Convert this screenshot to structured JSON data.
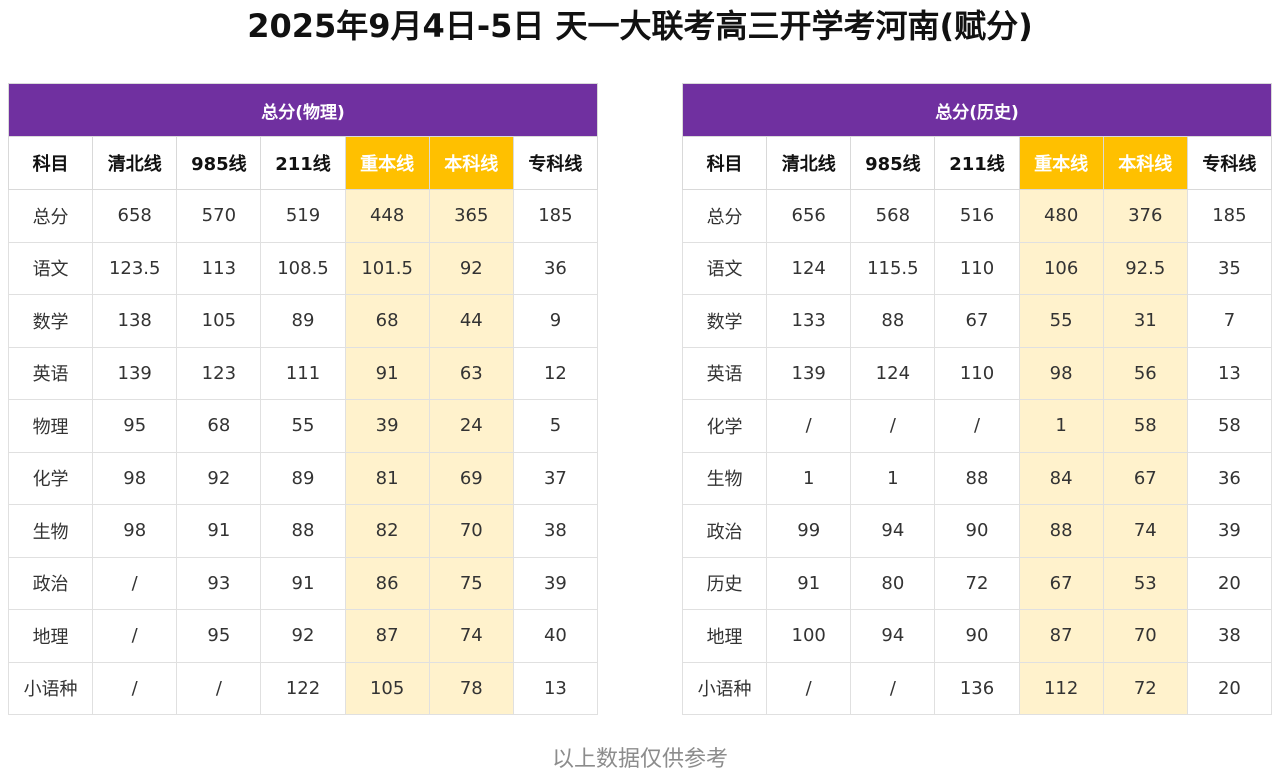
{
  "title": "2025年9月4日-5日  天一大联考高三开学考河南(赋分)",
  "columns": [
    "科目",
    "清北线",
    "985线",
    "211线",
    "重本线",
    "本科线",
    "专科线"
  ],
  "colors": {
    "header_purple": "#7030a0",
    "highlight_header": "#ffc000",
    "highlight_cell": "#fff2cc"
  },
  "highlight_columns": [
    "重本线",
    "本科线"
  ],
  "physics_table": {
    "header": "总分(物理)",
    "rows": [
      [
        "总分",
        "658",
        "570",
        "519",
        "448",
        "365",
        "185"
      ],
      [
        "语文",
        "123.5",
        "113",
        "108.5",
        "101.5",
        "92",
        "36"
      ],
      [
        "数学",
        "138",
        "105",
        "89",
        "68",
        "44",
        "9"
      ],
      [
        "英语",
        "139",
        "123",
        "111",
        "91",
        "63",
        "12"
      ],
      [
        "物理",
        "95",
        "68",
        "55",
        "39",
        "24",
        "5"
      ],
      [
        "化学",
        "98",
        "92",
        "89",
        "81",
        "69",
        "37"
      ],
      [
        "生物",
        "98",
        "91",
        "88",
        "82",
        "70",
        "38"
      ],
      [
        "政治",
        "/",
        "93",
        "91",
        "86",
        "75",
        "39"
      ],
      [
        "地理",
        "/",
        "95",
        "92",
        "87",
        "74",
        "40"
      ],
      [
        "小语种",
        "/",
        "/",
        "122",
        "105",
        "78",
        "13"
      ]
    ]
  },
  "history_table": {
    "header": "总分(历史)",
    "rows": [
      [
        "总分",
        "656",
        "568",
        "516",
        "480",
        "376",
        "185"
      ],
      [
        "语文",
        "124",
        "115.5",
        "110",
        "106",
        "92.5",
        "35"
      ],
      [
        "数学",
        "133",
        "88",
        "67",
        "55",
        "31",
        "7"
      ],
      [
        "英语",
        "139",
        "124",
        "110",
        "98",
        "56",
        "13"
      ],
      [
        "化学",
        "/",
        "/",
        "/",
        "1",
        "58",
        "58"
      ],
      [
        "生物",
        "1",
        "1",
        "88",
        "84",
        "67",
        "36"
      ],
      [
        "政治",
        "99",
        "94",
        "90",
        "88",
        "74",
        "39"
      ],
      [
        "历史",
        "91",
        "80",
        "72",
        "67",
        "53",
        "20"
      ],
      [
        "地理",
        "100",
        "94",
        "90",
        "87",
        "70",
        "38"
      ],
      [
        "小语种",
        "/",
        "/",
        "136",
        "112",
        "72",
        "20"
      ]
    ]
  },
  "footer": "以上数据仅供参考"
}
